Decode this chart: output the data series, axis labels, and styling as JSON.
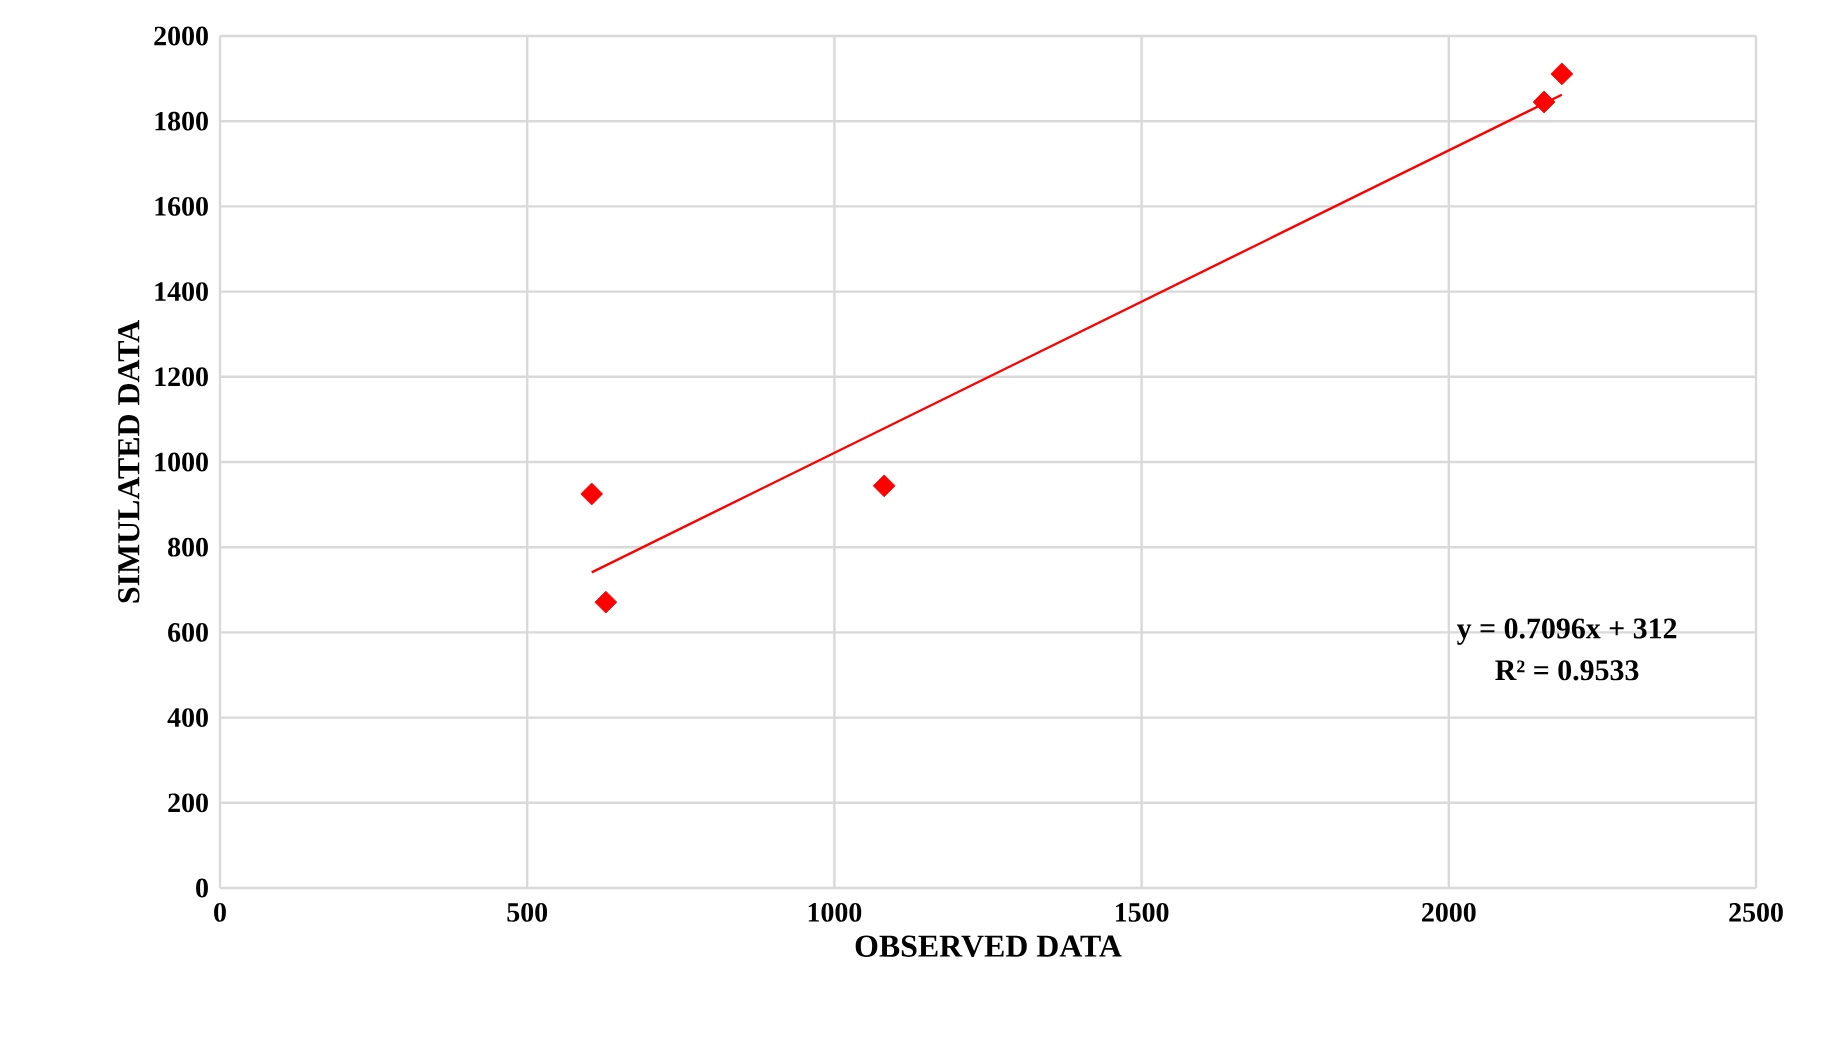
{
  "chart_data": {
    "type": "scatter",
    "xlabel": "OBSERVED DATA",
    "ylabel": "SIMULATED DATA",
    "xlim": [
      0,
      2500
    ],
    "ylim": [
      0,
      2000
    ],
    "xticks": [
      0,
      500,
      1000,
      1500,
      2000,
      2500
    ],
    "yticks": [
      0,
      200,
      400,
      600,
      800,
      1000,
      1200,
      1400,
      1600,
      1800,
      2000
    ],
    "grid": true,
    "marker": "diamond",
    "series": [
      {
        "color": "#ff0000",
        "x": [
          605,
          628,
          1081,
          2155,
          2184
        ],
        "values": [
          925,
          671,
          944,
          1845,
          1911
        ]
      },
      {
        "type": "line",
        "marker": "none",
        "color": "#ff0000",
        "x": [
          605,
          2184
        ],
        "values": [
          741,
          1862
        ]
      }
    ],
    "annotations": [
      "y = 0.7096x + 312",
      "R² = 0.9533"
    ]
  }
}
